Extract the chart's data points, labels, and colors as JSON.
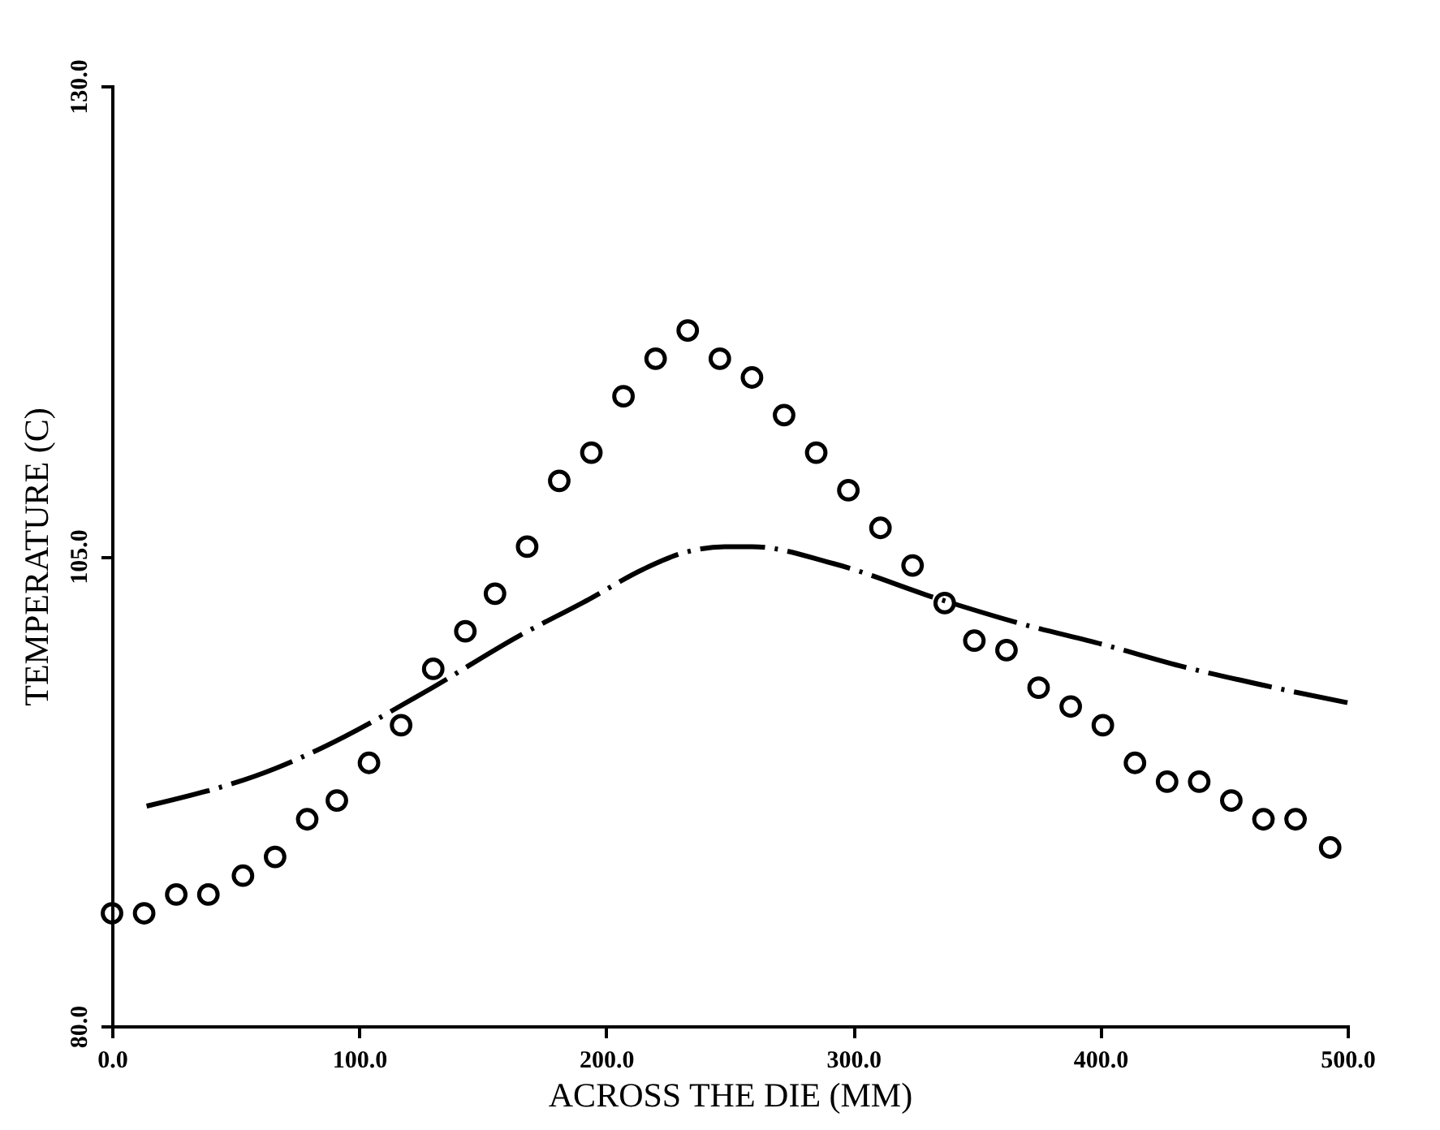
{
  "chart_data": {
    "type": "scatter",
    "xlabel": "ACROSS THE DIE (MM)",
    "ylabel": "TEMPERATURE (C)",
    "xlim": [
      0,
      500
    ],
    "ylim": [
      80,
      130
    ],
    "xticks": [
      {
        "value": 0,
        "label": "0.0"
      },
      {
        "value": 100,
        "label": "100.0"
      },
      {
        "value": 200,
        "label": "200.0"
      },
      {
        "value": 300,
        "label": "300.0"
      },
      {
        "value": 400,
        "label": "400.0"
      },
      {
        "value": 500,
        "label": "500.0"
      }
    ],
    "yticks": [
      {
        "value": 80,
        "label": "80.0"
      },
      {
        "value": 105,
        "label": "105.0"
      },
      {
        "value": 130,
        "label": "130.0"
      }
    ],
    "grid": false,
    "series": [
      {
        "color": "#000000",
        "marker": "circle",
        "x": [
          0,
          13,
          26,
          39,
          53,
          66,
          79,
          91,
          104,
          117,
          130,
          143,
          155,
          168,
          181,
          194,
          207,
          220,
          233,
          246,
          259,
          272,
          285,
          298,
          311,
          324,
          337,
          349,
          362,
          375,
          388,
          401,
          414,
          427,
          440,
          453,
          466,
          479,
          493
        ],
        "values": [
          86,
          86,
          87,
          87,
          88,
          89,
          91,
          92,
          94,
          96,
          99,
          101,
          103,
          105.5,
          109,
          110.5,
          113.5,
          115.5,
          117,
          115.5,
          114.5,
          112.5,
          110.5,
          108.5,
          106.5,
          104.5,
          102.5,
          100.5,
          100,
          98,
          97,
          96,
          94,
          93,
          93,
          92,
          91,
          91,
          89.5
        ]
      },
      {
        "type": "line",
        "color": "#000000",
        "line_style": "dashed",
        "x": [
          14,
          66,
          85,
          127,
          164,
          193,
          215,
          232,
          248,
          259,
          292,
          335,
          368,
          401,
          434,
          467,
          500
        ],
        "values": [
          91.7,
          93.7,
          94.8,
          97.8,
          100.7,
          102.7,
          104.3,
          105.2,
          105.5,
          105.5,
          104.6,
          102.7,
          101.4,
          100.3,
          99.1,
          98.1,
          97.2
        ]
      }
    ]
  }
}
